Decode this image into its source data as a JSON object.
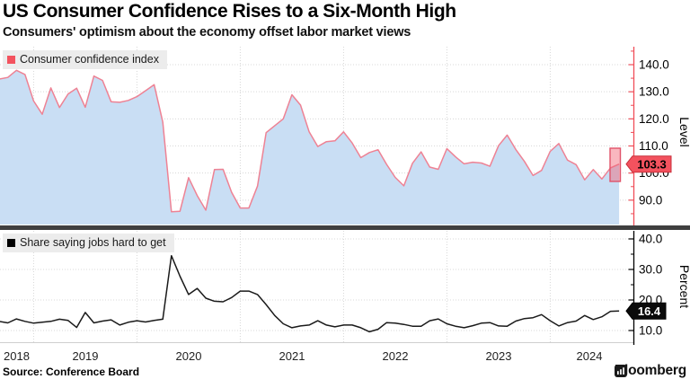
{
  "header": {
    "title": "US Consumer Confidence Rises to a Six-Month High",
    "subtitle": "Consumers' optimism about the economy offset labor market views"
  },
  "chart_data": [
    {
      "type": "area",
      "title": "Consumer confidence index",
      "frequency": "monthly",
      "start_month": "2018-08",
      "end_month": "2024-08",
      "ylabel": "Level",
      "ylim": [
        81,
        146
      ],
      "yticks": [
        "140.0",
        "130.0",
        "120.0",
        "110.0",
        "100.0",
        "90.0"
      ],
      "grid": true,
      "legend_position": "top-left",
      "last_value_label": "103.3",
      "line_color": "#ee8294",
      "fill_color": "#c9def4",
      "axis_color": "#f04e59",
      "badge_color": "#f3525e",
      "badge_border_color": "#c9303c",
      "badge_text_color": "#000000",
      "swatch_color": "#f3525e",
      "values": [
        134.7,
        135.3,
        137.9,
        136.4,
        126.6,
        121.7,
        131.4,
        124.2,
        129.2,
        131.3,
        124.3,
        135.8,
        134.2,
        126.3,
        126.1,
        126.8,
        128.2,
        130.4,
        132.6,
        118.8,
        85.7,
        85.9,
        98.3,
        91.7,
        86.3,
        101.3,
        101.4,
        92.9,
        87.1,
        87.1,
        95.2,
        114.9,
        117.5,
        120.0,
        128.9,
        125.1,
        115.2,
        109.8,
        111.6,
        111.9,
        115.2,
        111.1,
        105.7,
        107.6,
        108.6,
        103.2,
        98.4,
        95.3,
        103.6,
        107.8,
        102.2,
        101.4,
        109.0,
        106.0,
        103.4,
        104.0,
        103.7,
        102.5,
        110.1,
        114.0,
        108.7,
        104.3,
        99.1,
        101.0,
        108.0,
        110.9,
        104.8,
        103.1,
        97.5,
        101.3,
        97.8,
        101.9,
        103.3
      ]
    },
    {
      "type": "line",
      "title": "Share saying jobs hard to get",
      "frequency": "monthly",
      "start_month": "2018-08",
      "end_month": "2024-08",
      "ylabel": "Percent",
      "ylim": [
        5,
        42
      ],
      "yticks": [
        "40.0",
        "30.0",
        "20.0",
        "10.0"
      ],
      "grid": true,
      "legend_position": "top-left",
      "last_value_label": "16.4",
      "line_color": "#1a1a1a",
      "axis_color": "#000000",
      "badge_color": "#0a0a0a",
      "badge_border_color": "#000000",
      "badge_text_color": "#ffffff",
      "swatch_color": "#000000",
      "values": [
        13.0,
        12.5,
        13.8,
        13.0,
        12.4,
        12.7,
        13.0,
        13.7,
        13.3,
        11.0,
        15.9,
        12.5,
        13.1,
        13.5,
        11.8,
        12.7,
        13.2,
        12.8,
        13.3,
        13.7,
        34.5,
        27.8,
        21.8,
        23.8,
        20.6,
        19.6,
        19.4,
        20.8,
        22.9,
        22.9,
        21.8,
        18.5,
        14.9,
        12.2,
        10.9,
        11.5,
        11.8,
        13.2,
        11.8,
        11.2,
        11.8,
        11.8,
        10.9,
        9.6,
        10.4,
        12.6,
        12.4,
        12.0,
        11.4,
        11.4,
        13.2,
        13.8,
        12.2,
        11.4,
        10.9,
        11.6,
        12.4,
        12.6,
        11.5,
        11.4,
        13.1,
        13.9,
        14.2,
        15.2,
        13.2,
        11.5,
        12.6,
        13.1,
        14.9,
        13.6,
        14.5,
        16.3,
        16.4
      ]
    }
  ],
  "x_axis": {
    "year_labels": [
      "2018",
      "2019",
      "2020",
      "2021",
      "2022",
      "2023",
      "2024"
    ]
  },
  "footer": {
    "source": "Source: Conference Board",
    "brand": "Bloomberg"
  }
}
